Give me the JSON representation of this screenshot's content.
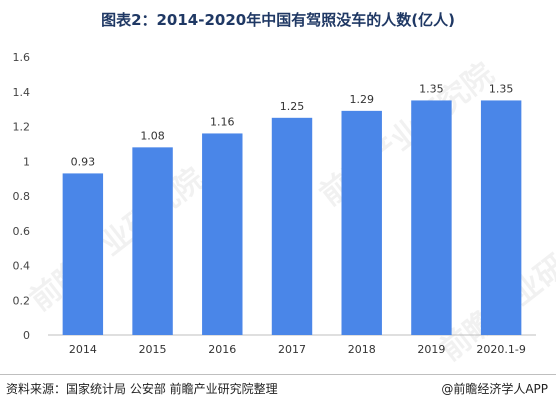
{
  "chart_data": {
    "type": "bar",
    "title": "图表2：2014-2020年中国有驾照没车的人数(亿人)",
    "categories": [
      "2014",
      "2015",
      "2016",
      "2017",
      "2018",
      "2019",
      "2020.1-9"
    ],
    "values": [
      0.93,
      1.08,
      1.16,
      1.25,
      1.29,
      1.35,
      1.35
    ],
    "value_labels": [
      "0.93",
      "1.08",
      "1.16",
      "1.25",
      "1.29",
      "1.35",
      "1.35"
    ],
    "xlabel": "",
    "ylabel": "",
    "ylim": [
      0,
      1.6
    ],
    "yticks": [
      0,
      0.2,
      0.4,
      0.6,
      0.8,
      1,
      1.2,
      1.4,
      1.6
    ],
    "ytick_labels": [
      "0",
      "0.2",
      "0.4",
      "0.6",
      "0.8",
      "1",
      "1.2",
      "1.4",
      "1.6"
    ],
    "grid": false,
    "legend": "none",
    "bar_color": "#4a86e8"
  },
  "footer": {
    "source": "资料来源：国家统计局 公安部 前瞻产业研究院整理",
    "credit": "@前瞻经济学人APP"
  },
  "watermark": {
    "text": "前瞻产业研究院"
  }
}
